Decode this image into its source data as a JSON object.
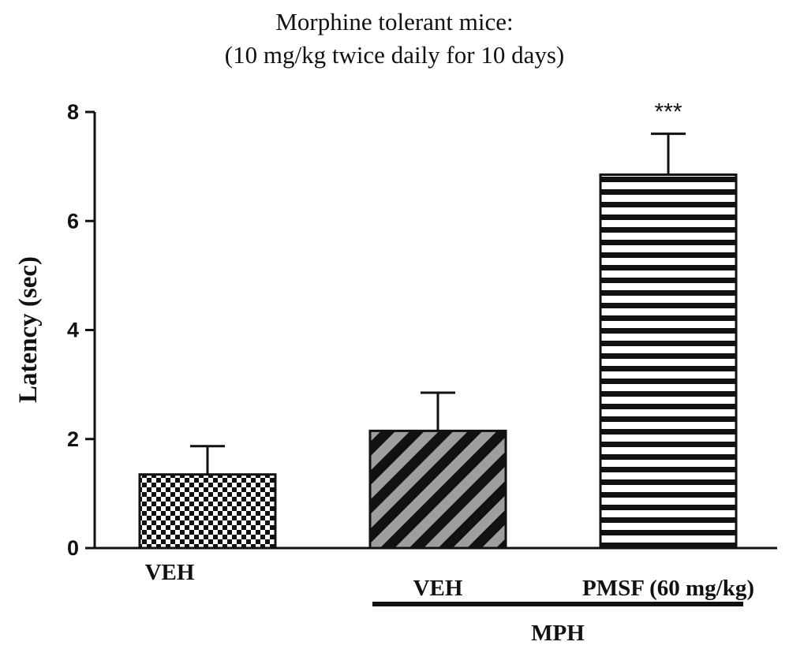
{
  "chart_data": {
    "type": "bar",
    "title": "Morphine tolerant mice:",
    "subtitle": "(10 mg/kg twice daily for 10 days)",
    "ylabel": "Latency (sec)",
    "ylim": [
      0,
      8
    ],
    "yticks": [
      "0",
      "2",
      "4",
      "6",
      "8"
    ],
    "categories": [
      "VEH",
      "VEH",
      "PMSF (60 mg/kg)"
    ],
    "values": [
      1.35,
      2.15,
      6.85
    ],
    "errors": [
      0.52,
      0.7,
      0.75
    ],
    "patterns": [
      "checkerboard",
      "diagonal-stripes-gray",
      "horizontal-stripes"
    ],
    "annotations": [
      "",
      "",
      "***"
    ],
    "group_label": "MPH",
    "grid": false
  }
}
